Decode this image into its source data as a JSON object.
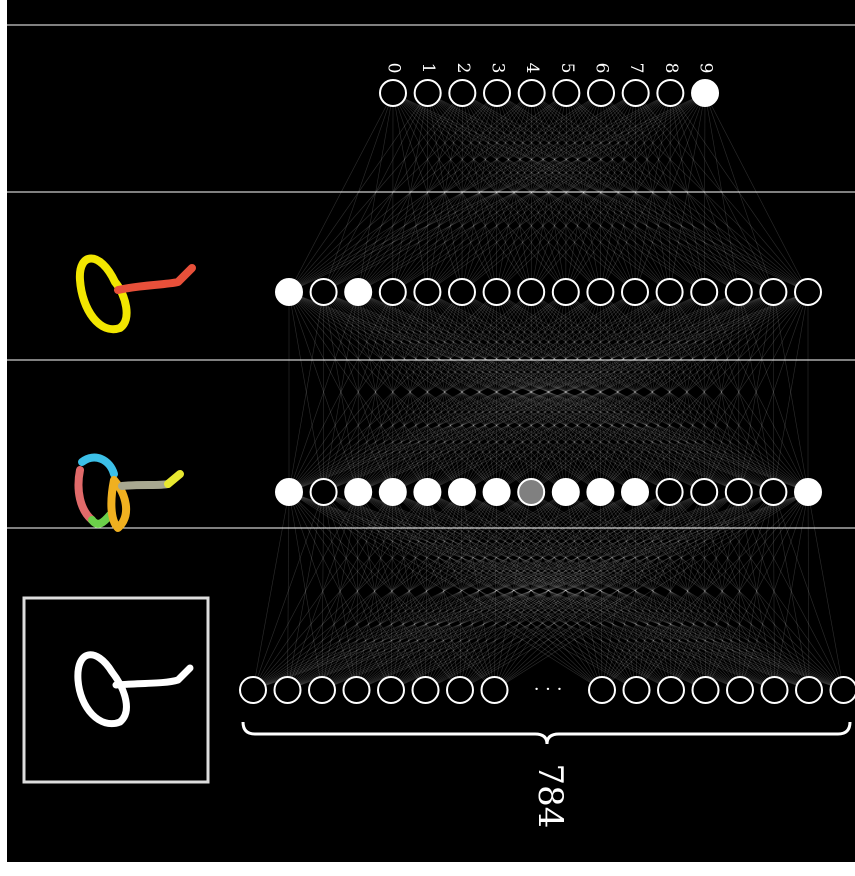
{
  "output_labels": [
    "0",
    "1",
    "2",
    "3",
    "4",
    "5",
    "6",
    "7",
    "8",
    "9"
  ],
  "input_count": "784",
  "ellipsis": "· · ·"
}
